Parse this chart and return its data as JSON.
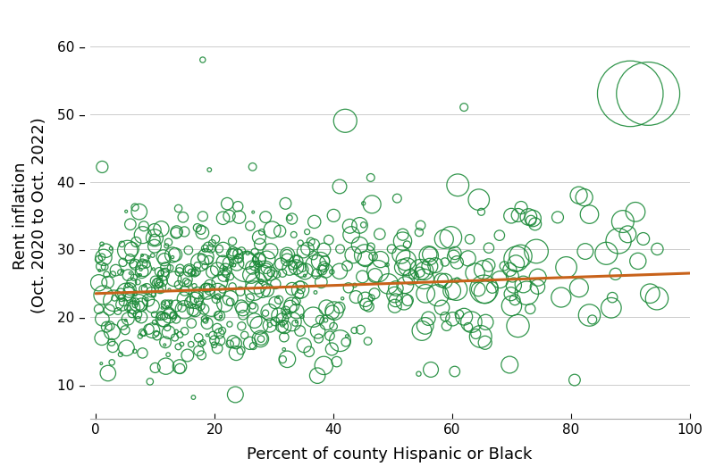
{
  "title": "",
  "xlabel": "Percent of county Hispanic or Black",
  "ylabel": "Rent inflation\n(Oct. 2020 to Oct. 2022)",
  "xlim": [
    -1,
    100
  ],
  "ylim": [
    5,
    65
  ],
  "xticks": [
    0,
    20,
    40,
    60,
    80,
    100
  ],
  "yticks": [
    10,
    20,
    30,
    40,
    50,
    60
  ],
  "scatter_color": "#1b8a38",
  "scatter_facecolor": "none",
  "line_color": "#c8621a",
  "line_width": 2.2,
  "background_color": "#ffffff",
  "grid_color": "#cccccc",
  "seed": 42,
  "n_counties": 600,
  "trend_x": [
    0,
    100
  ],
  "trend_y": [
    23.5,
    26.5
  ]
}
